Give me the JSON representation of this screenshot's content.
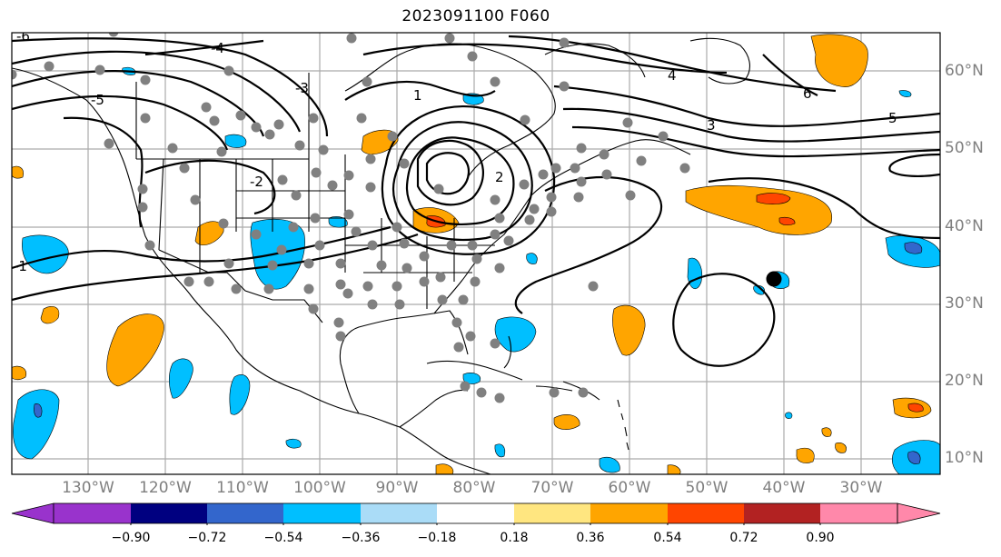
{
  "title": "2023091100 F060",
  "lat_labels": [
    "60°N",
    "50°N",
    "40°N",
    "30°N",
    "20°N",
    "10°N"
  ],
  "lon_labels": [
    "130°W",
    "120°W",
    "110°W",
    "100°W",
    "90°W",
    "80°W",
    "70°W",
    "60°W",
    "50°W",
    "40°W",
    "30°W"
  ],
  "contour_labels": [
    "-6",
    "-5",
    "-4",
    "-3",
    "-2",
    "-1",
    "1",
    "2",
    "3",
    "4",
    "5",
    "6"
  ],
  "colorbar": {
    "ticks": [
      "−0.90",
      "−0.72",
      "−0.54",
      "−0.36",
      "−0.18",
      "0.18",
      "0.36",
      "0.54",
      "0.72",
      "0.90"
    ],
    "colors": [
      "#9933cc",
      "#000080",
      "#3366cc",
      "#00bfff",
      "#aadcf7",
      "#ffffff",
      "#ffe680",
      "#ffa500",
      "#ff4500",
      "#b22222",
      "#ff88aa"
    ]
  },
  "colors": {
    "land_outline": "#000000",
    "grid": "#aaaaaa",
    "station_dot": "#808080",
    "target_dot": "#000000"
  }
}
